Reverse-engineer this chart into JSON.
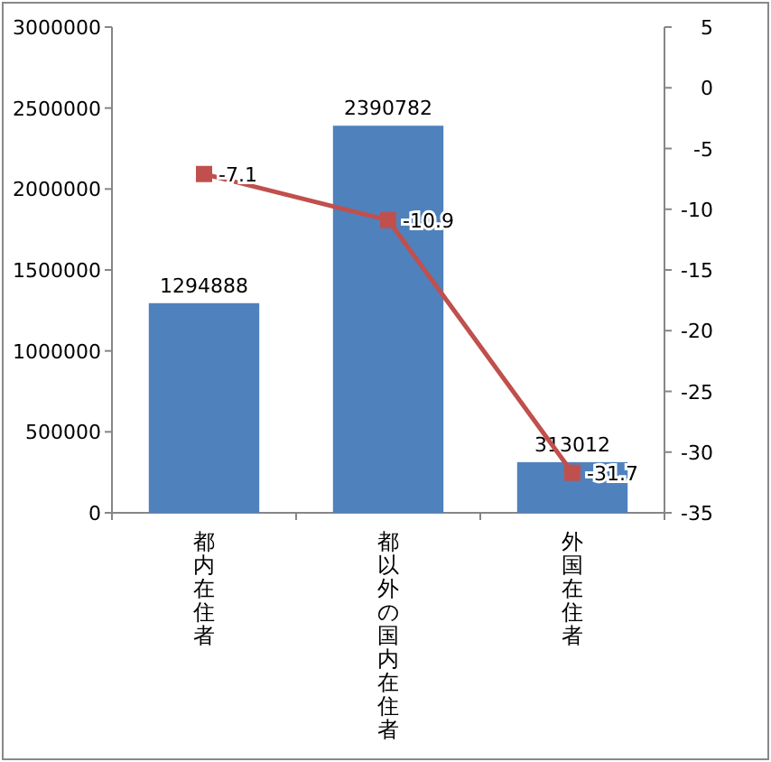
{
  "chart_data": {
    "type": "bar",
    "categories": [
      "都内在住者",
      "都以外の国内在住者",
      "外国在住者"
    ],
    "series": [
      {
        "color": "#4f81bd",
        "values": [
          1294888,
          2390782,
          313012
        ]
      },
      {
        "type": "line",
        "axis": "y2",
        "color": "#c0504d",
        "marker": "square",
        "values": [
          -7.1,
          -10.9,
          -31.7
        ]
      }
    ],
    "ylim": [
      0,
      3000000
    ],
    "yticks": [
      0,
      500000,
      1000000,
      1500000,
      2000000,
      2500000,
      3000000
    ],
    "y2lim": [
      -35,
      5
    ],
    "y2ticks": [
      -35,
      -30,
      -25,
      -20,
      -15,
      -10,
      -5,
      0,
      5
    ],
    "data_labels": true,
    "grid": false
  }
}
